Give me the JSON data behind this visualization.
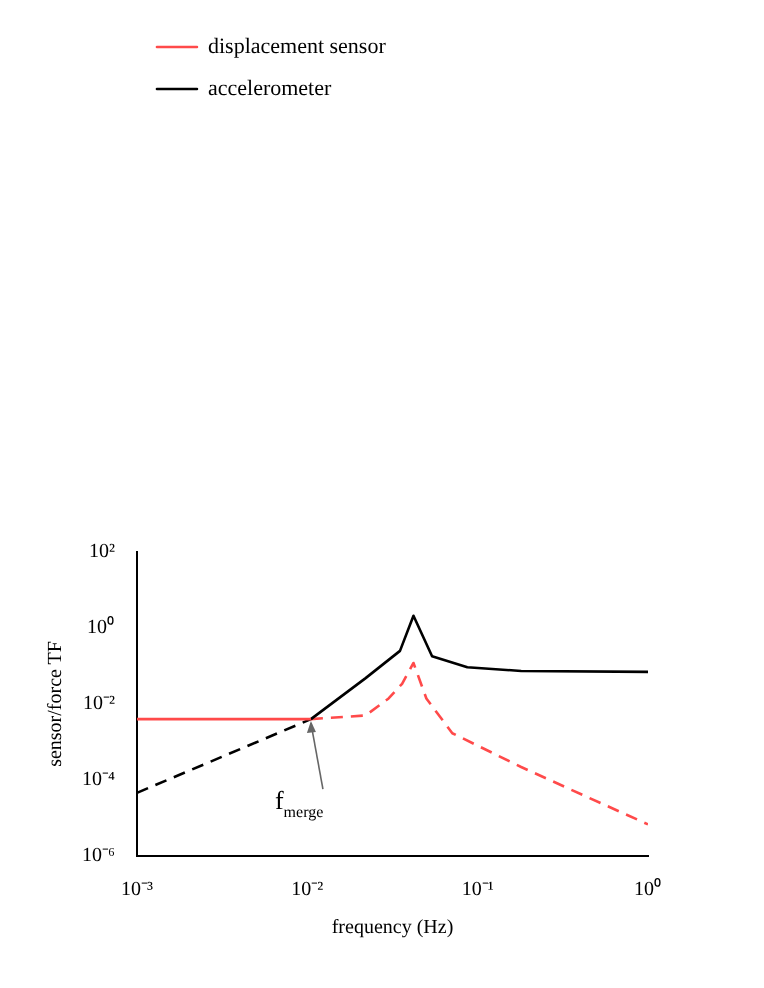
{
  "chart_data": {
    "type": "line",
    "xlabel": "frequency (Hz)",
    "ylabel": "sensor/force TF",
    "log": "xy",
    "grid": false,
    "legend": "top left",
    "marker": "none",
    "xlim": [
      0.001,
      1
    ],
    "xticks": [
      {
        "value": 0.001,
        "label": "10⁻³"
      },
      {
        "value": 0.01,
        "label": "10⁻²"
      },
      {
        "value": 0.1,
        "label": "10⁻¹"
      },
      {
        "value": 1,
        "label": "10⁰"
      }
    ],
    "ylim": [
      1e-06,
      100
    ],
    "yticks": [
      {
        "value": 1e-06,
        "label": "10⁻⁶"
      },
      {
        "value": 0.0001,
        "label": "10⁻⁴"
      },
      {
        "value": 0.01,
        "label": "10⁻²"
      },
      {
        "value": 1,
        "label": "10⁰"
      },
      {
        "value": 100,
        "label": "10²"
      }
    ],
    "series": [
      {
        "name": "displacement sensor",
        "color": "#ff4a4a",
        "line_style": "solid",
        "x": [
          0.001,
          0.0105
        ],
        "values": [
          0.004,
          0.004
        ]
      },
      {
        "name": "accelerometer",
        "color": "#000000",
        "line_style": "solid",
        "x": [
          0.0105,
          0.022,
          0.035,
          0.042,
          0.054,
          0.087,
          0.18,
          1
        ],
        "values": [
          0.004,
          0.048,
          0.25,
          2.1,
          0.18,
          0.093,
          0.074,
          0.07
        ]
      },
      {
        "color": "#ff4a4a",
        "line_style": "dashed",
        "x": [
          0.0105,
          0.022,
          0.03,
          0.036,
          0.042,
          0.05,
          0.071,
          0.18,
          0.45,
          1
        ],
        "values": [
          0.004,
          0.005,
          0.014,
          0.034,
          0.12,
          0.014,
          0.0017,
          0.00022,
          3.4e-05,
          6.8e-06
        ]
      },
      {
        "color": "#000000",
        "line_style": "dashed",
        "x": [
          0.001,
          0.0105
        ],
        "values": [
          4.6e-05,
          0.004
        ]
      }
    ],
    "annotations": [
      {
        "text": "f$_{merge}$",
        "x": 0.0105,
        "y": 0.004
      }
    ]
  }
}
